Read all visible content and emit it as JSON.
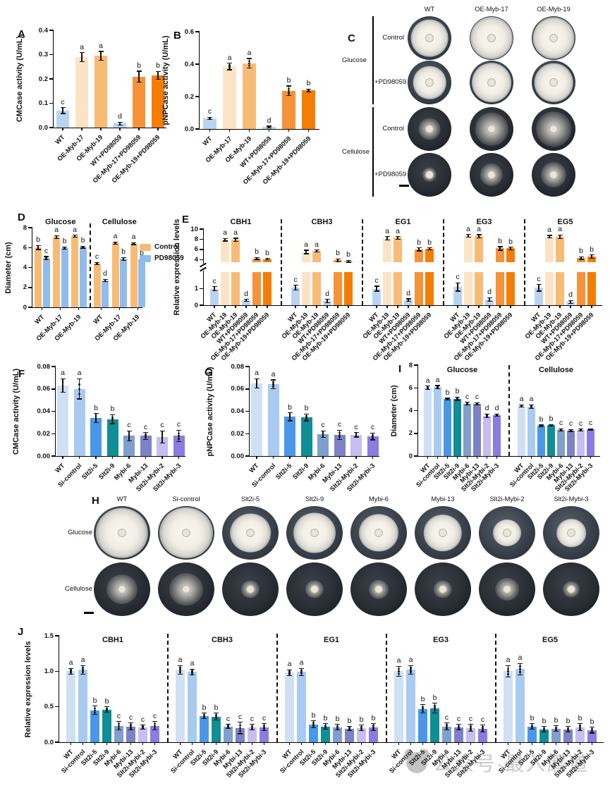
{
  "watermark": {
    "text": "公众号·最入蘑道"
  },
  "palette": {
    "blueLight": "#b9d4f1",
    "peach": "#fde3c5",
    "orangeLight": "#f8bb76",
    "orangeMid": "#f6933a",
    "orangeDark": "#f57d04",
    "ctrl": "#f8bb76",
    "pd": "#8fbcec",
    "wt": "#cfe0f5",
    "si": "#a9cbf1",
    "s5": "#4a97e9",
    "s9": "#0f8e96",
    "m6": "#7f9fcc",
    "m13": "#7b82c8",
    "sm2": "#c6bdf0",
    "sm3": "#8a7ce0"
  },
  "chart_data": [
    {
      "id": "A",
      "panel": "A",
      "type": "bar",
      "ylabel": "CMCase activity (U/mL)",
      "ymax": 0.4,
      "yticks": [
        {
          "v": 0,
          "t": "0.0"
        },
        {
          "v": 0.1,
          "t": "0.1"
        },
        {
          "v": 0.2,
          "t": "0.2"
        },
        {
          "v": 0.3,
          "t": "0.3"
        },
        {
          "v": 0.4,
          "t": "0.4"
        }
      ],
      "categories": [
        "WT",
        "OE-Myb-17",
        "OE-Myb-19",
        "WT+PD98059",
        "OE-Myb-17+PD98059",
        "OE-Myb-19+PD98059"
      ],
      "colors": [
        "blueLight",
        "peach",
        "orangeLight",
        "blueLight",
        "orangeMid",
        "orangeDark"
      ],
      "values": [
        0.07,
        0.29,
        0.295,
        0.016,
        0.21,
        0.215
      ],
      "errors": [
        0.012,
        0.018,
        0.018,
        0.006,
        0.022,
        0.016
      ],
      "letters": [
        "c",
        "a",
        "a",
        "d",
        "b",
        "b"
      ]
    },
    {
      "id": "B",
      "panel": "B",
      "type": "bar",
      "ylabel": "pNPCase activity (U/mL)",
      "ymax": 0.6,
      "yticks": [
        {
          "v": 0,
          "t": "0.0"
        },
        {
          "v": 0.2,
          "t": "0.2"
        },
        {
          "v": 0.4,
          "t": "0.4"
        },
        {
          "v": 0.6,
          "t": "0.6"
        }
      ],
      "categories": [
        "WT",
        "OE-Myb-17",
        "OE-Myb-19",
        "WT+PD98059",
        "OE-Myb-17+PD98059",
        "OE-Myb-19+PD98059"
      ],
      "colors": [
        "blueLight",
        "peach",
        "orangeLight",
        "blueLight",
        "orangeMid",
        "orangeDark"
      ],
      "values": [
        0.065,
        0.385,
        0.405,
        0.012,
        0.235,
        0.237
      ],
      "errors": [
        0.008,
        0.02,
        0.03,
        0.005,
        0.03,
        0.01
      ],
      "letters": [
        "c",
        "a",
        "a",
        "d",
        "b",
        "b"
      ]
    },
    {
      "id": "D",
      "panel": "D",
      "type": "paired",
      "ylabel": "Diameter (cm)",
      "ymax": 8,
      "yticks": [
        {
          "v": 0,
          "t": "0"
        },
        {
          "v": 2,
          "t": "2"
        },
        {
          "v": 4,
          "t": "4"
        },
        {
          "v": 6,
          "t": "6"
        },
        {
          "v": 8,
          "t": "8"
        }
      ],
      "categories": [
        "WT",
        "OE-Myb-17",
        "OE-Myb-19"
      ],
      "sections": [
        {
          "title": "Glucose",
          "series": [
            {
              "name": "Control",
              "color": "ctrl",
              "values": [
                6.0,
                7.05,
                7.15
              ],
              "errors": [
                0.2,
                0.15,
                0.1
              ],
              "letters": [
                "b",
                "a",
                "a"
              ]
            },
            {
              "name": "PD98059",
              "color": "pd",
              "values": [
                4.95,
                5.95,
                6.05
              ],
              "errors": [
                0.15,
                0.12,
                0.1
              ],
              "letters": [
                "c",
                "b",
                "b"
              ]
            }
          ]
        },
        {
          "title": "Cellulose",
          "series": [
            {
              "name": "Control",
              "color": "ctrl",
              "values": [
                4.4,
                6.45,
                6.4
              ],
              "errors": [
                0.12,
                0.12,
                0.1
              ],
              "letters": [
                "c",
                "a",
                "a"
              ]
            },
            {
              "name": "PD98059",
              "color": "pd",
              "values": [
                2.7,
                4.85,
                4.8
              ],
              "errors": [
                0.12,
                0.15,
                0.1
              ],
              "letters": [
                "d",
                "b",
                "b"
              ]
            }
          ]
        }
      ]
    },
    {
      "id": "E",
      "panel": "E",
      "type": "grouped",
      "ylabel": "Relative expression levels",
      "ymax": 10,
      "break": {
        "lowMax": 2,
        "highMin": 3.5,
        "lowFrac": 0.435,
        "gap": 14
      },
      "yticks": [
        {
          "v": 0,
          "t": "0"
        },
        {
          "v": 1,
          "t": "1"
        },
        {
          "v": 4,
          "t": "4"
        },
        {
          "v": 6,
          "t": "6"
        },
        {
          "v": 8,
          "t": "8"
        },
        {
          "v": 10,
          "t": "10"
        }
      ],
      "categories": [
        "WT",
        "OE-Myb-19",
        "OE-Myb-19",
        "WT+PD98059",
        "OE-Myb-17+PD98059",
        "OE-Myb-19+PD98059"
      ],
      "colors": [
        "blueLight",
        "peach",
        "orangeLight",
        "blueLight",
        "orangeMid",
        "orangeDark"
      ],
      "sections": [
        {
          "title": "CBH1",
          "values": [
            1.0,
            7.9,
            7.9,
            0.3,
            4.25,
            4.1
          ],
          "errors": [
            0.12,
            0.25,
            0.3,
            0.06,
            0.2,
            0.15
          ],
          "letters": [
            "c",
            "a",
            "a",
            "d",
            "b",
            "b"
          ]
        },
        {
          "title": "CBH3",
          "values": [
            1.05,
            5.5,
            5.7,
            0.25,
            3.85,
            3.7
          ],
          "errors": [
            0.15,
            0.35,
            0.2,
            0.1,
            0.3,
            0.2
          ],
          "letters": [
            "c",
            "a",
            "a",
            "d",
            "b",
            "b"
          ]
        },
        {
          "title": "EG1",
          "values": [
            1.0,
            8.2,
            8.3,
            0.3,
            6.0,
            6.1
          ],
          "errors": [
            0.15,
            0.3,
            0.25,
            0.08,
            0.3,
            0.2
          ],
          "letters": [
            "c",
            "a",
            "a",
            "d",
            "b",
            "b"
          ]
        },
        {
          "title": "EG3",
          "values": [
            1.1,
            8.7,
            8.6,
            0.35,
            6.2,
            6.2
          ],
          "errors": [
            0.25,
            0.25,
            0.3,
            0.1,
            0.35,
            0.25
          ],
          "letters": [
            "c",
            "a",
            "a",
            "d",
            "b",
            "b"
          ]
        },
        {
          "title": "EG5",
          "values": [
            1.05,
            8.5,
            8.5,
            0.2,
            4.3,
            4.6
          ],
          "errors": [
            0.2,
            0.25,
            0.35,
            0.08,
            0.25,
            0.3
          ],
          "letters": [
            "c",
            "a",
            "a",
            "d",
            "b",
            "b"
          ]
        }
      ]
    },
    {
      "id": "F",
      "panel": "F",
      "type": "bar",
      "ylabel": "CMCase activity (U/mL)",
      "ymax": 0.08,
      "yticks": [
        {
          "v": 0,
          "t": "0.00"
        },
        {
          "v": 0.02,
          "t": "0.02"
        },
        {
          "v": 0.04,
          "t": "0.04"
        },
        {
          "v": 0.06,
          "t": "0.06"
        },
        {
          "v": 0.08,
          "t": "0.08"
        }
      ],
      "categories": [
        "WT",
        "Si-control",
        "Slt2i-5",
        "Slt2i-9",
        "Mybi-6",
        "Mybi-13",
        "Slt2i-Mybi-2",
        "Slt2i-Mybi-3"
      ],
      "colors": [
        "wt",
        "si",
        "s5",
        "s9",
        "m6",
        "m13",
        "sm2",
        "sm3"
      ],
      "values": [
        0.063,
        0.06,
        0.034,
        0.033,
        0.018,
        0.018,
        0.017,
        0.018
      ],
      "errors": [
        0.006,
        0.009,
        0.004,
        0.004,
        0.0045,
        0.003,
        0.0055,
        0.005
      ],
      "letters": [
        "a",
        "a",
        "b",
        "b",
        "c",
        "c",
        "c",
        "c"
      ]
    },
    {
      "id": "G",
      "panel": "G",
      "type": "bar",
      "ylabel": "pNPCase activity (U/mL)",
      "ymax": 0.08,
      "yticks": [
        {
          "v": 0,
          "t": "0.00"
        },
        {
          "v": 0.02,
          "t": "0.02"
        },
        {
          "v": 0.04,
          "t": "0.04"
        },
        {
          "v": 0.06,
          "t": "0.06"
        },
        {
          "v": 0.08,
          "t": "0.08"
        }
      ],
      "categories": [
        "WT",
        "Si-control",
        "Slt2i-5",
        "Slt2i-9",
        "Mybi-6",
        "Mybi-13",
        "Slt2i-Mybi-2",
        "Slt2i-Mybi-3"
      ],
      "colors": [
        "wt",
        "si",
        "s5",
        "s9",
        "m6",
        "m13",
        "sm2",
        "sm3"
      ],
      "values": [
        0.065,
        0.064,
        0.035,
        0.0345,
        0.0195,
        0.019,
        0.019,
        0.0175
      ],
      "errors": [
        0.004,
        0.004,
        0.0035,
        0.003,
        0.003,
        0.004,
        0.002,
        0.003
      ],
      "letters": [
        "a",
        "a",
        "b",
        "b",
        "c",
        "c",
        "c",
        "c"
      ]
    },
    {
      "id": "I",
      "panel": "I",
      "type": "grouped",
      "ylabel": "Diameter (cm)",
      "ymax": 8,
      "yticks": [
        {
          "v": 0,
          "t": "0"
        },
        {
          "v": 2,
          "t": "2"
        },
        {
          "v": 4,
          "t": "4"
        },
        {
          "v": 6,
          "t": "6"
        },
        {
          "v": 8,
          "t": "8"
        }
      ],
      "categories": [
        "WT",
        "Si-control",
        "Slt2i-5",
        "Slt2i-9",
        "Mybi-6",
        "Mybi-13",
        "Slt2i-Mybi-2",
        "Slt2i-Mybi-3"
      ],
      "colors": [
        "wt",
        "si",
        "s5",
        "s9",
        "m6",
        "m13",
        "sm2",
        "sm3"
      ],
      "sections": [
        {
          "title": "Glucose",
          "values": [
            6.0,
            6.05,
            5.0,
            5.05,
            4.6,
            4.6,
            3.55,
            3.6
          ],
          "errors": [
            0.15,
            0.15,
            0.08,
            0.15,
            0.12,
            0.1,
            0.15,
            0.1
          ],
          "letters": [
            "a",
            "a",
            "b",
            "b",
            "c",
            "c",
            "d",
            "d"
          ]
        },
        {
          "title": "Cellulose",
          "values": [
            4.4,
            4.35,
            2.65,
            2.7,
            2.3,
            2.25,
            2.3,
            2.35
          ],
          "errors": [
            0.1,
            0.15,
            0.08,
            0.08,
            0.1,
            0.08,
            0.08,
            0.05
          ],
          "letters": [
            "a",
            "a",
            "b",
            "b",
            "c",
            "c",
            "c",
            "c"
          ]
        }
      ]
    },
    {
      "id": "J",
      "panel": "J",
      "type": "grouped",
      "ylabel": "Relative expression levels",
      "ymax": 1.5,
      "yticks": [
        {
          "v": 0,
          "t": "0.0"
        },
        {
          "v": 0.5,
          "t": "0.5"
        },
        {
          "v": 1.0,
          "t": "1.0"
        },
        {
          "v": 1.5,
          "t": "1.5"
        }
      ],
      "categories": [
        "WT",
        "Si-control",
        "Slt2i-5",
        "Slt2i-9",
        "Mybi-6",
        "Mybi-13",
        "Slt2i-Mybi-2",
        "Slt2i-Mybi-3"
      ],
      "colors": [
        "wt",
        "si",
        "s5",
        "s9",
        "m6",
        "m13",
        "sm2",
        "sm3"
      ],
      "sections": [
        {
          "title": "CBH1",
          "values": [
            1.0,
            1.02,
            0.45,
            0.46,
            0.23,
            0.22,
            0.21,
            0.23
          ],
          "errors": [
            0.04,
            0.06,
            0.06,
            0.04,
            0.06,
            0.05,
            0.03,
            0.06
          ],
          "letters": [
            "a",
            "a",
            "b",
            "b",
            "c",
            "c",
            "c",
            "c"
          ]
        },
        {
          "title": "CBH3",
          "values": [
            1.02,
            0.99,
            0.37,
            0.36,
            0.22,
            0.2,
            0.21,
            0.21
          ],
          "errors": [
            0.06,
            0.04,
            0.04,
            0.05,
            0.03,
            0.08,
            0.04,
            0.05
          ],
          "letters": [
            "a",
            "a",
            "b",
            "b",
            "c",
            "c",
            "c",
            "c"
          ]
        },
        {
          "title": "EG1",
          "values": [
            0.98,
            0.99,
            0.25,
            0.22,
            0.21,
            0.19,
            0.2,
            0.21
          ],
          "errors": [
            0.04,
            0.05,
            0.05,
            0.04,
            0.04,
            0.03,
            0.04,
            0.05
          ],
          "letters": [
            "a",
            "a",
            "b",
            "b",
            "b",
            "b",
            "b",
            "b"
          ]
        },
        {
          "title": "EG3",
          "values": [
            1.0,
            1.02,
            0.47,
            0.48,
            0.22,
            0.21,
            0.2,
            0.19
          ],
          "errors": [
            0.07,
            0.06,
            0.06,
            0.07,
            0.05,
            0.04,
            0.05,
            0.05
          ],
          "letters": [
            "a",
            "a",
            "b",
            "b",
            "c",
            "c",
            "c",
            "c"
          ]
        },
        {
          "title": "EG5",
          "values": [
            1.0,
            1.03,
            0.22,
            0.18,
            0.19,
            0.18,
            0.21,
            0.17
          ],
          "errors": [
            0.08,
            0.08,
            0.04,
            0.04,
            0.04,
            0.04,
            0.05,
            0.04
          ],
          "letters": [
            "a",
            "a",
            "b",
            "b",
            "b",
            "b",
            "b",
            "b"
          ]
        }
      ]
    }
  ],
  "panel_c": {
    "label": "C",
    "col_headers": [
      "WT",
      "OE-Myb-17",
      "OE-Myb-19"
    ],
    "row_groups": [
      {
        "name": "Glucose",
        "rows": [
          {
            "name": "Control",
            "style": "dense",
            "colonies": [
              0.85,
              0.97,
              0.95
            ]
          },
          {
            "name": "+PD98059",
            "style": "dense",
            "colonies": [
              0.75,
              0.9,
              0.88
            ]
          }
        ]
      },
      {
        "name": "Cellulose",
        "rows": [
          {
            "name": "Control",
            "style": "sparse",
            "colonies": [
              0.5,
              0.75,
              0.8
            ]
          },
          {
            "name": "+PD98059",
            "style": "sparse",
            "colonies": [
              0.33,
              0.52,
              0.58
            ]
          }
        ]
      }
    ]
  },
  "panel_h": {
    "label": "H",
    "col_headers": [
      "WT",
      "Si-control",
      "Slt2i-5",
      "Slt2i-9",
      "Mybi-6",
      "Mybi-13",
      "Slt2i-Mybi-2",
      "Slt2i-Mybi-3"
    ],
    "rows": [
      {
        "name": "Glucose",
        "style": "dense",
        "colonies": [
          0.93,
          0.95,
          0.72,
          0.75,
          0.7,
          0.68,
          0.5,
          0.52
        ]
      },
      {
        "name": "Cellulose",
        "style": "sparse",
        "colonies": [
          0.55,
          0.6,
          0.33,
          0.33,
          0.35,
          0.33,
          0.42,
          0.3
        ]
      }
    ]
  }
}
